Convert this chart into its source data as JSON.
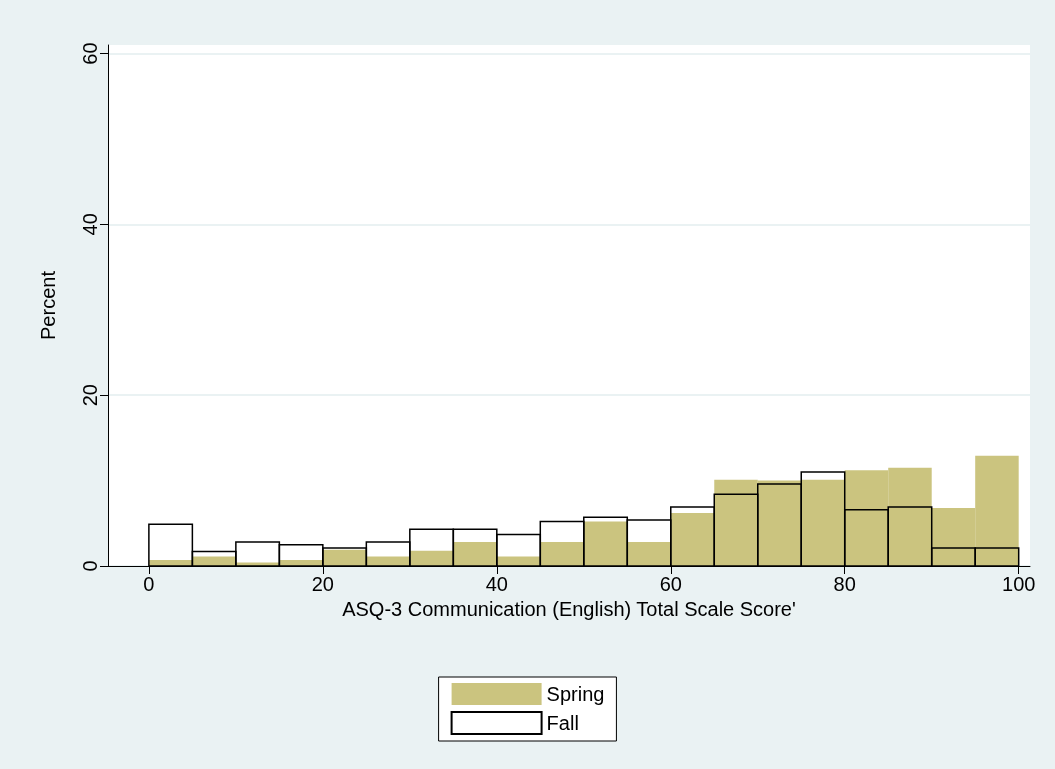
{
  "chart_data": {
    "type": "histogram",
    "xlabel": "ASQ-3 Communication (English) Total Scale Score'",
    "ylabel": "Percent",
    "bins": [
      0,
      5,
      10,
      15,
      20,
      25,
      30,
      35,
      40,
      45,
      50,
      55,
      60,
      65,
      70,
      75,
      80,
      85,
      90,
      95,
      100
    ],
    "series": [
      {
        "name": "Spring",
        "color": "#cbc47f",
        "values": [
          0.7,
          1.1,
          0.4,
          0.7,
          1.9,
          1.1,
          1.8,
          2.8,
          1.1,
          2.8,
          5.2,
          2.8,
          6.2,
          10.1,
          10.0,
          10.1,
          11.2,
          11.5,
          6.8,
          12.9
        ]
      },
      {
        "name": "Fall",
        "color": "#000000",
        "values": [
          4.9,
          1.7,
          2.8,
          2.5,
          2.1,
          2.8,
          4.3,
          4.3,
          3.7,
          5.2,
          5.7,
          5.4,
          6.9,
          8.4,
          9.6,
          11.0,
          6.6,
          6.9,
          2.1,
          2.1
        ]
      }
    ],
    "xlim": [
      -4.7,
      101.3
    ],
    "xticks": [
      0,
      20,
      40,
      60,
      80,
      100
    ],
    "ylim": [
      0,
      61
    ],
    "yticks": [
      0,
      20,
      40,
      60
    ],
    "grid": "y",
    "legend": "bottom"
  }
}
